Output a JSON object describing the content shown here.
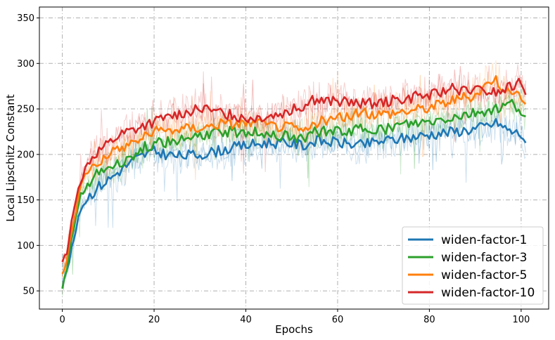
{
  "chart_data": {
    "type": "line",
    "title": "",
    "xlabel": "Epochs",
    "ylabel": "Local Lipschitz Constant",
    "xlim": [
      -5,
      106
    ],
    "ylim": [
      30,
      362
    ],
    "x_ticks": [
      0,
      20,
      40,
      60,
      80,
      100
    ],
    "y_ticks": [
      50,
      100,
      150,
      200,
      250,
      300,
      350
    ],
    "grid": true,
    "grid_style": "dash-dot",
    "legend_position": "lower-right",
    "series": [
      {
        "name": "widen-factor-1",
        "color": "#1f77b4",
        "x": [
          0,
          1,
          2,
          3,
          4,
          5,
          6,
          8,
          10,
          12,
          14,
          16,
          18,
          20,
          25,
          30,
          35,
          40,
          45,
          50,
          53,
          55,
          60,
          65,
          70,
          75,
          80,
          85,
          90,
          95,
          96,
          98,
          100,
          101
        ],
        "y": [
          55,
          72,
          95,
          118,
          140,
          148,
          155,
          165,
          172,
          180,
          188,
          195,
          200,
          203,
          198,
          200,
          205,
          210,
          213,
          212,
          210,
          215,
          213,
          210,
          215,
          218,
          222,
          225,
          228,
          235,
          230,
          225,
          222,
          215
        ]
      },
      {
        "name": "widen-factor-3",
        "color": "#2ca02c",
        "x": [
          0,
          1,
          2,
          3,
          4,
          5,
          6,
          8,
          10,
          12,
          14,
          16,
          18,
          20,
          25,
          30,
          35,
          40,
          45,
          50,
          53,
          55,
          60,
          65,
          70,
          75,
          80,
          85,
          90,
          95,
          98,
          100,
          101
        ],
        "y": [
          52,
          75,
          105,
          130,
          155,
          162,
          170,
          180,
          185,
          188,
          195,
          202,
          208,
          212,
          215,
          220,
          225,
          225,
          222,
          220,
          218,
          225,
          225,
          228,
          228,
          232,
          235,
          240,
          245,
          250,
          255,
          248,
          240
        ]
      },
      {
        "name": "widen-factor-5",
        "color": "#ff7f0e",
        "x": [
          0,
          1,
          2,
          3,
          4,
          5,
          6,
          8,
          10,
          12,
          14,
          16,
          18,
          20,
          25,
          30,
          35,
          40,
          45,
          50,
          53,
          55,
          60,
          65,
          70,
          75,
          80,
          85,
          90,
          94,
          96,
          98,
          100,
          101
        ],
        "y": [
          68,
          85,
          115,
          140,
          165,
          178,
          185,
          193,
          198,
          205,
          210,
          215,
          220,
          225,
          228,
          230,
          233,
          235,
          232,
          230,
          225,
          235,
          240,
          245,
          245,
          248,
          252,
          260,
          265,
          285,
          275,
          265,
          262,
          255
        ]
      },
      {
        "name": "widen-factor-10",
        "color": "#d62728",
        "x": [
          0,
          1,
          2,
          3,
          4,
          5,
          6,
          8,
          10,
          12,
          14,
          16,
          18,
          20,
          25,
          30,
          35,
          40,
          45,
          50,
          53,
          55,
          60,
          65,
          70,
          75,
          80,
          85,
          90,
          95,
          98,
          100,
          101
        ],
        "y": [
          80,
          92,
          125,
          150,
          170,
          185,
          195,
          205,
          212,
          220,
          225,
          228,
          232,
          235,
          245,
          250,
          245,
          240,
          243,
          248,
          255,
          260,
          258,
          255,
          258,
          262,
          265,
          272,
          270,
          268,
          275,
          278,
          270
        ]
      }
    ]
  }
}
